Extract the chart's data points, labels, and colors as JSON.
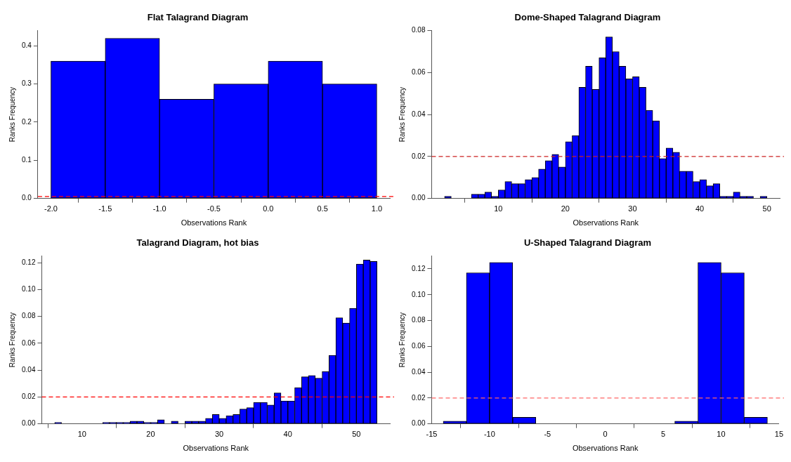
{
  "chart_data": [
    {
      "type": "histogram",
      "title": "Flat Talagrand Diagram",
      "xlabel": "Observations Rank",
      "ylabel": "Ranks Frequency",
      "bins": [
        -2,
        -1.5,
        -1,
        -0.5,
        0,
        0.5,
        1
      ],
      "values": [
        0.36,
        0.42,
        0.26,
        0.3,
        0.36,
        0.3
      ],
      "color": "#0000ff",
      "xlim": [
        -2.12,
        1.12
      ],
      "ylim": [
        0,
        0.44
      ],
      "xticks": [
        {
          "value": -2,
          "label": "-2.0"
        },
        {
          "value": -1.5,
          "label": "-1.5"
        },
        {
          "value": -1,
          "label": "-1.0"
        },
        {
          "value": -0.5,
          "label": "-0.5"
        },
        {
          "value": 0,
          "label": "0.0"
        },
        {
          "value": 0.5,
          "label": "0.5"
        },
        {
          "value": 1,
          "label": "1.0"
        }
      ],
      "yticks": [
        {
          "value": 0,
          "label": "0.0"
        },
        {
          "value": 0.1,
          "label": "0.1"
        },
        {
          "value": 0.2,
          "label": "0.2"
        },
        {
          "value": 0.3,
          "label": "0.3"
        },
        {
          "value": 0.4,
          "label": "0.4"
        }
      ],
      "ref_lines": [
        {
          "axis": "y",
          "value": 0.005,
          "color": "#ff0000",
          "line_style": "dashed"
        }
      ]
    },
    {
      "type": "histogram",
      "title": "Dome-Shaped Talagrand Diagram",
      "xlabel": "Observations Rank",
      "ylabel": "Ranks Frequency",
      "bins": [
        2,
        3,
        4,
        5,
        6,
        7,
        8,
        9,
        10,
        11,
        12,
        13,
        14,
        15,
        16,
        17,
        18,
        19,
        20,
        21,
        22,
        23,
        24,
        25,
        26,
        27,
        28,
        29,
        30,
        31,
        32,
        33,
        34,
        35,
        36,
        37,
        38,
        39,
        40,
        41,
        42,
        43,
        44,
        45,
        46,
        47,
        48,
        49,
        50
      ],
      "values": [
        0.001,
        0,
        0,
        0,
        0.002,
        0.002,
        0.003,
        0.001,
        0.004,
        0.008,
        0.007,
        0.007,
        0.009,
        0.01,
        0.014,
        0.018,
        0.021,
        0.015,
        0.027,
        0.03,
        0.053,
        0.063,
        0.052,
        0.067,
        0.077,
        0.07,
        0.063,
        0.057,
        0.058,
        0.053,
        0.042,
        0.037,
        0.019,
        0.024,
        0.022,
        0.013,
        0.013,
        0.008,
        0.009,
        0.006,
        0.007,
        0.001,
        0.001,
        0.003,
        0.001,
        0.001,
        0,
        0.001
      ],
      "color": "#0000ff",
      "xlim": [
        0.08,
        51.92
      ],
      "ylim": [
        0,
        0.08
      ],
      "xticks": [
        10,
        20,
        30,
        40,
        50
      ],
      "yticks": [
        {
          "value": 0,
          "label": "0.00"
        },
        {
          "value": 0.02,
          "label": "0.02"
        },
        {
          "value": 0.04,
          "label": "0.04"
        },
        {
          "value": 0.06,
          "label": "0.06"
        },
        {
          "value": 0.08,
          "label": "0.08"
        }
      ],
      "ref_lines": [
        {
          "axis": "y",
          "value": 0.02,
          "color": "#cc2222",
          "line_style": "dashed"
        }
      ]
    },
    {
      "type": "histogram",
      "title": "Talagrand Diagram, hot bias",
      "xlabel": "Observations Rank",
      "ylabel": "Ranks Frequency",
      "bins": [
        6,
        7,
        8,
        9,
        10,
        11,
        12,
        13,
        14,
        15,
        16,
        17,
        18,
        19,
        20,
        21,
        22,
        23,
        24,
        25,
        26,
        27,
        28,
        29,
        30,
        31,
        32,
        33,
        34,
        35,
        36,
        37,
        38,
        39,
        40,
        41,
        42,
        43,
        44,
        45,
        46,
        47,
        48,
        49,
        50,
        51,
        52,
        53
      ],
      "values": [
        0.001,
        0,
        0,
        0,
        0,
        0,
        0,
        0.001,
        0.001,
        0.001,
        0.001,
        0.002,
        0.002,
        0.001,
        0.001,
        0.003,
        0,
        0.002,
        0,
        0.002,
        0.002,
        0.002,
        0.004,
        0.007,
        0.004,
        0.006,
        0.007,
        0.011,
        0.012,
        0.016,
        0.016,
        0.014,
        0.023,
        0.017,
        0.017,
        0.027,
        0.035,
        0.036,
        0.034,
        0.039,
        0.051,
        0.079,
        0.075,
        0.086,
        0.119,
        0.122,
        0.121
      ],
      "color": "#0000ff",
      "xlim": [
        4.12,
        54.88
      ],
      "ylim": [
        0,
        0.125
      ],
      "xticks": [
        10,
        20,
        30,
        40,
        50
      ],
      "yticks": [
        {
          "value": 0,
          "label": "0.00"
        },
        {
          "value": 0.02,
          "label": "0.02"
        },
        {
          "value": 0.04,
          "label": "0.04"
        },
        {
          "value": 0.06,
          "label": "0.06"
        },
        {
          "value": 0.08,
          "label": "0.08"
        },
        {
          "value": 0.1,
          "label": "0.10"
        },
        {
          "value": 0.12,
          "label": "0.12"
        }
      ],
      "ref_lines": [
        {
          "axis": "y",
          "value": 0.02,
          "color": "#ff0000",
          "line_style": "dashed"
        }
      ]
    },
    {
      "type": "histogram",
      "title": "U-Shaped Talagrand Diagram",
      "xlabel": "Observations Rank",
      "ylabel": "Ranks Frequency",
      "bins": [
        -14,
        -12,
        -10,
        -8,
        -6,
        -4,
        -2,
        0,
        2,
        4,
        6,
        8,
        10,
        12,
        14
      ],
      "values": [
        0.002,
        0.117,
        0.125,
        0.005,
        0,
        0,
        0,
        0,
        0,
        0,
        0.002,
        0.125,
        0.117,
        0.005
      ],
      "color": "#0000ff",
      "xlim": [
        -15,
        15
      ],
      "ylim": [
        0,
        0.13
      ],
      "xticks": [
        -15,
        -10,
        -5,
        0,
        5,
        10,
        15
      ],
      "yticks": [
        {
          "value": 0,
          "label": "0.00"
        },
        {
          "value": 0.02,
          "label": "0.02"
        },
        {
          "value": 0.04,
          "label": "0.04"
        },
        {
          "value": 0.06,
          "label": "0.06"
        },
        {
          "value": 0.08,
          "label": "0.08"
        },
        {
          "value": 0.1,
          "label": "0.10"
        },
        {
          "value": 0.12,
          "label": "0.12"
        }
      ],
      "ref_lines": [
        {
          "axis": "y",
          "value": 0.02,
          "color": "#ff6666",
          "line_style": "dashed"
        }
      ]
    }
  ]
}
